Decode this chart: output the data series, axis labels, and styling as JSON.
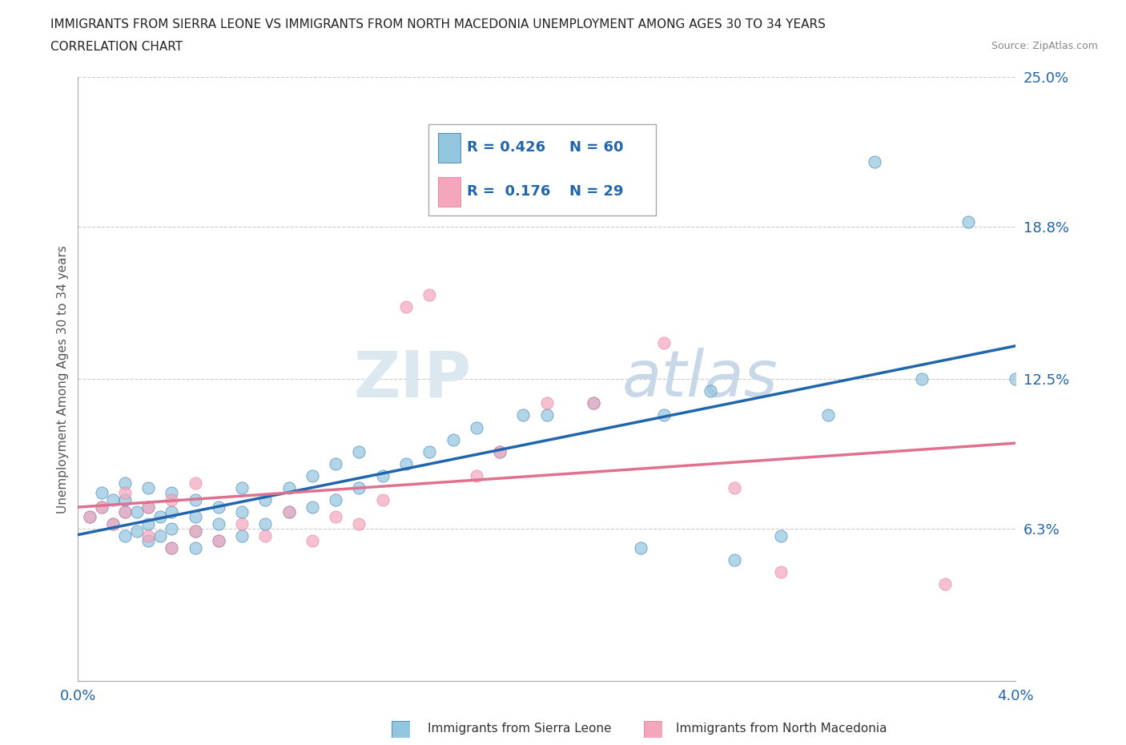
{
  "title_line1": "IMMIGRANTS FROM SIERRA LEONE VS IMMIGRANTS FROM NORTH MACEDONIA UNEMPLOYMENT AMONG AGES 30 TO 34 YEARS",
  "title_line2": "CORRELATION CHART",
  "source": "Source: ZipAtlas.com",
  "ylabel": "Unemployment Among Ages 30 to 34 years",
  "xlim": [
    0.0,
    0.04
  ],
  "ylim": [
    0.0,
    0.25
  ],
  "yticks": [
    0.063,
    0.125,
    0.188,
    0.25
  ],
  "ytick_labels": [
    "6.3%",
    "12.5%",
    "18.8%",
    "25.0%"
  ],
  "legend_r1": "R = 0.426",
  "legend_n1": "N = 60",
  "legend_r2": "R =  0.176",
  "legend_n2": "N = 29",
  "color_blue": "#92c5de",
  "color_pink": "#f4a6bd",
  "color_blue_dark": "#2166ac",
  "color_pink_dark": "#d6604d",
  "watermark_zip": "ZIP",
  "watermark_atlas": "atlas",
  "sierra_leone_x": [
    0.0005,
    0.001,
    0.001,
    0.0015,
    0.0015,
    0.002,
    0.002,
    0.002,
    0.002,
    0.0025,
    0.0025,
    0.003,
    0.003,
    0.003,
    0.003,
    0.0035,
    0.0035,
    0.004,
    0.004,
    0.004,
    0.004,
    0.005,
    0.005,
    0.005,
    0.005,
    0.006,
    0.006,
    0.006,
    0.007,
    0.007,
    0.007,
    0.008,
    0.008,
    0.009,
    0.009,
    0.01,
    0.01,
    0.011,
    0.011,
    0.012,
    0.012,
    0.013,
    0.014,
    0.015,
    0.016,
    0.017,
    0.018,
    0.019,
    0.02,
    0.022,
    0.024,
    0.025,
    0.027,
    0.028,
    0.03,
    0.032,
    0.034,
    0.036,
    0.038,
    0.04
  ],
  "sierra_leone_y": [
    0.068,
    0.072,
    0.078,
    0.065,
    0.075,
    0.06,
    0.07,
    0.075,
    0.082,
    0.062,
    0.07,
    0.058,
    0.065,
    0.072,
    0.08,
    0.06,
    0.068,
    0.055,
    0.063,
    0.07,
    0.078,
    0.055,
    0.062,
    0.068,
    0.075,
    0.058,
    0.065,
    0.072,
    0.06,
    0.07,
    0.08,
    0.065,
    0.075,
    0.07,
    0.08,
    0.072,
    0.085,
    0.075,
    0.09,
    0.08,
    0.095,
    0.085,
    0.09,
    0.095,
    0.1,
    0.105,
    0.095,
    0.11,
    0.11,
    0.115,
    0.055,
    0.11,
    0.12,
    0.05,
    0.06,
    0.11,
    0.215,
    0.125,
    0.19,
    0.125
  ],
  "north_mac_x": [
    0.0005,
    0.001,
    0.0015,
    0.002,
    0.002,
    0.003,
    0.003,
    0.004,
    0.004,
    0.005,
    0.005,
    0.006,
    0.007,
    0.008,
    0.009,
    0.01,
    0.011,
    0.012,
    0.013,
    0.014,
    0.015,
    0.017,
    0.018,
    0.02,
    0.022,
    0.025,
    0.028,
    0.03,
    0.037
  ],
  "north_mac_y": [
    0.068,
    0.072,
    0.065,
    0.07,
    0.078,
    0.06,
    0.072,
    0.055,
    0.075,
    0.062,
    0.082,
    0.058,
    0.065,
    0.06,
    0.07,
    0.058,
    0.068,
    0.065,
    0.075,
    0.155,
    0.16,
    0.085,
    0.095,
    0.115,
    0.115,
    0.14,
    0.08,
    0.045,
    0.04
  ]
}
